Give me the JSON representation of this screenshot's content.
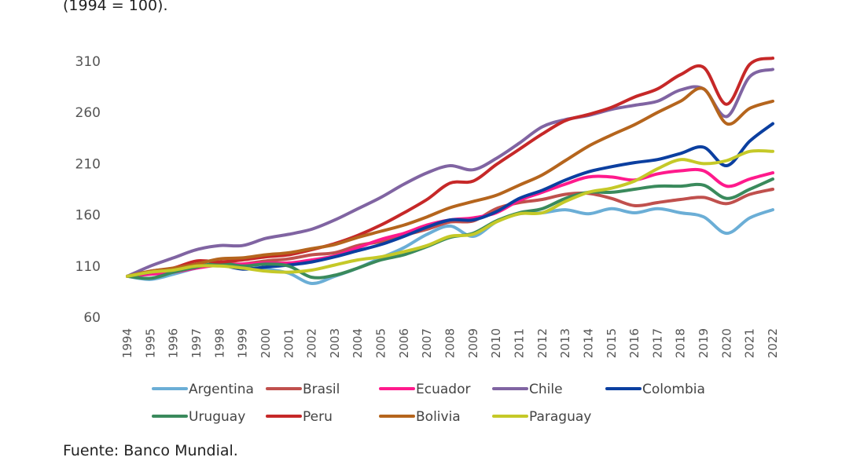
{
  "subtitle": "(1994 = 100).",
  "source": "Fuente: Banco Mundial.",
  "chart_data": {
    "type": "line",
    "title": "",
    "xlabel": "",
    "ylabel": "",
    "ylim": [
      60,
      310
    ],
    "yticks": [
      60,
      110,
      160,
      210,
      260,
      310
    ],
    "grid": false,
    "legend_position": "bottom",
    "x": [
      1994,
      1995,
      1996,
      1997,
      1998,
      1999,
      2000,
      2001,
      2002,
      2003,
      2004,
      2005,
      2006,
      2007,
      2008,
      2009,
      2010,
      2011,
      2012,
      2013,
      2014,
      2015,
      2016,
      2017,
      2018,
      2019,
      2020,
      2021,
      2022
    ],
    "series": [
      {
        "name": "Argentina",
        "color": "#6baed6",
        "values": [
          100,
          97,
          102,
          108,
          111,
          108,
          107,
          103,
          93,
          100,
          108,
          118,
          128,
          141,
          149,
          139,
          153,
          161,
          162,
          165,
          161,
          166,
          162,
          166,
          162,
          158,
          142,
          157,
          165
        ]
      },
      {
        "name": "Brasil",
        "color": "#c0504d",
        "values": [
          100,
          103,
          106,
          109,
          112,
          112,
          115,
          117,
          121,
          123,
          130,
          134,
          140,
          146,
          153,
          154,
          166,
          172,
          175,
          180,
          181,
          176,
          169,
          172,
          175,
          177,
          171,
          180,
          185
        ]
      },
      {
        "name": "Ecuador",
        "color": "#ff1a8c",
        "values": [
          100,
          102,
          104,
          108,
          111,
          112,
          113,
          113,
          116,
          120,
          128,
          136,
          142,
          150,
          155,
          157,
          162,
          174,
          182,
          190,
          197,
          197,
          194,
          200,
          203,
          203,
          188,
          195,
          201
        ]
      },
      {
        "name": "Chile",
        "color": "#8064a2",
        "values": [
          100,
          110,
          118,
          126,
          130,
          130,
          137,
          141,
          146,
          155,
          166,
          177,
          190,
          201,
          208,
          204,
          215,
          230,
          246,
          253,
          257,
          263,
          267,
          271,
          282,
          283,
          256,
          295,
          302
        ]
      },
      {
        "name": "Colombia",
        "color": "#0b3fa0",
        "values": [
          100,
          104,
          107,
          110,
          111,
          107,
          109,
          111,
          114,
          119,
          125,
          131,
          139,
          148,
          155,
          155,
          163,
          176,
          184,
          194,
          202,
          207,
          211,
          214,
          220,
          226,
          208,
          232,
          249
        ]
      },
      {
        "name": "Uruguay",
        "color": "#3a8a5c",
        "values": [
          100,
          98,
          104,
          109,
          113,
          110,
          112,
          110,
          99,
          101,
          108,
          116,
          121,
          129,
          138,
          142,
          154,
          162,
          166,
          176,
          182,
          182,
          185,
          188,
          188,
          189,
          176,
          185,
          195
        ]
      },
      {
        "name": "Peru",
        "color": "#c62828",
        "values": [
          100,
          105,
          108,
          115,
          114,
          116,
          119,
          121,
          126,
          132,
          140,
          150,
          162,
          175,
          191,
          193,
          209,
          224,
          239,
          252,
          258,
          265,
          275,
          283,
          297,
          304,
          268,
          307,
          313
        ]
      },
      {
        "name": "Bolivia",
        "color": "#b5651d",
        "values": [
          100,
          105,
          108,
          112,
          117,
          118,
          121,
          123,
          127,
          131,
          138,
          144,
          150,
          158,
          167,
          173,
          179,
          189,
          199,
          213,
          227,
          238,
          248,
          260,
          271,
          283,
          249,
          264,
          271
        ]
      },
      {
        "name": "Paraguay",
        "color": "#c5c928",
        "values": [
          100,
          104,
          106,
          110,
          110,
          108,
          105,
          104,
          106,
          111,
          116,
          119,
          124,
          130,
          139,
          141,
          153,
          161,
          162,
          173,
          182,
          186,
          193,
          205,
          214,
          210,
          213,
          222,
          222
        ]
      }
    ]
  }
}
